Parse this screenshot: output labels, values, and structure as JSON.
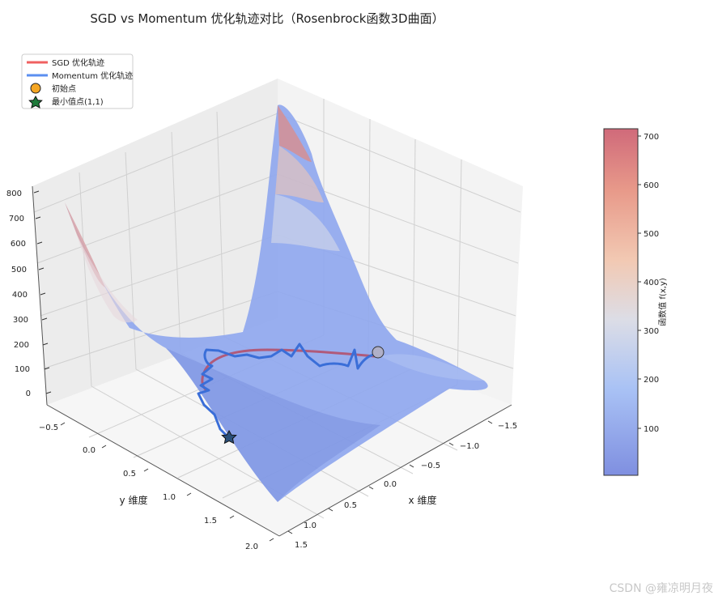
{
  "chart_data": {
    "type": "surface3d",
    "title": "SGD vs Momentum 优化轨迹对比（Rosenbrock函数3D曲面）",
    "xlabel": "x 维度",
    "ylabel": "y 维度",
    "zlabel": "",
    "x_ticks": [
      "−1.5",
      "−1.0",
      "−0.5",
      "0.0",
      "0.5",
      "1.0",
      "1.5"
    ],
    "y_ticks": [
      "−0.5",
      "0.0",
      "0.5",
      "1.0",
      "1.5",
      "2.0"
    ],
    "z_ticks": [
      "0",
      "100",
      "200",
      "300",
      "400",
      "500",
      "600",
      "700",
      "800"
    ],
    "xlim": [
      -1.5,
      1.5
    ],
    "ylim": [
      -0.5,
      2.0
    ],
    "zlim": [
      0,
      800
    ],
    "surface": {
      "function": "Rosenbrock",
      "colormap": "coolwarm",
      "alpha": 0.6
    },
    "legend": {
      "position": "top-left",
      "entries": [
        {
          "label": "SGD 优化轨迹",
          "color": "#f06060",
          "marker": "line"
        },
        {
          "label": "Momentum 优化轨迹",
          "color": "#5b8ff0",
          "marker": "line"
        },
        {
          "label": "初始点",
          "color": "#f5a623",
          "marker": "circle"
        },
        {
          "label": "最小值点(1,1)",
          "color": "#1e7a3a",
          "marker": "star"
        }
      ]
    },
    "colorbar": {
      "label": "函数值 f(x,y)",
      "ticks": [
        "100",
        "200",
        "300",
        "400",
        "500",
        "600",
        "700"
      ],
      "range": [
        0,
        710
      ]
    },
    "points": {
      "start": {
        "x": -1.5,
        "y": 2.0
      },
      "minimum": {
        "x": 1.0,
        "y": 1.0
      }
    }
  },
  "watermark": "CSDN @雍凉明月夜"
}
